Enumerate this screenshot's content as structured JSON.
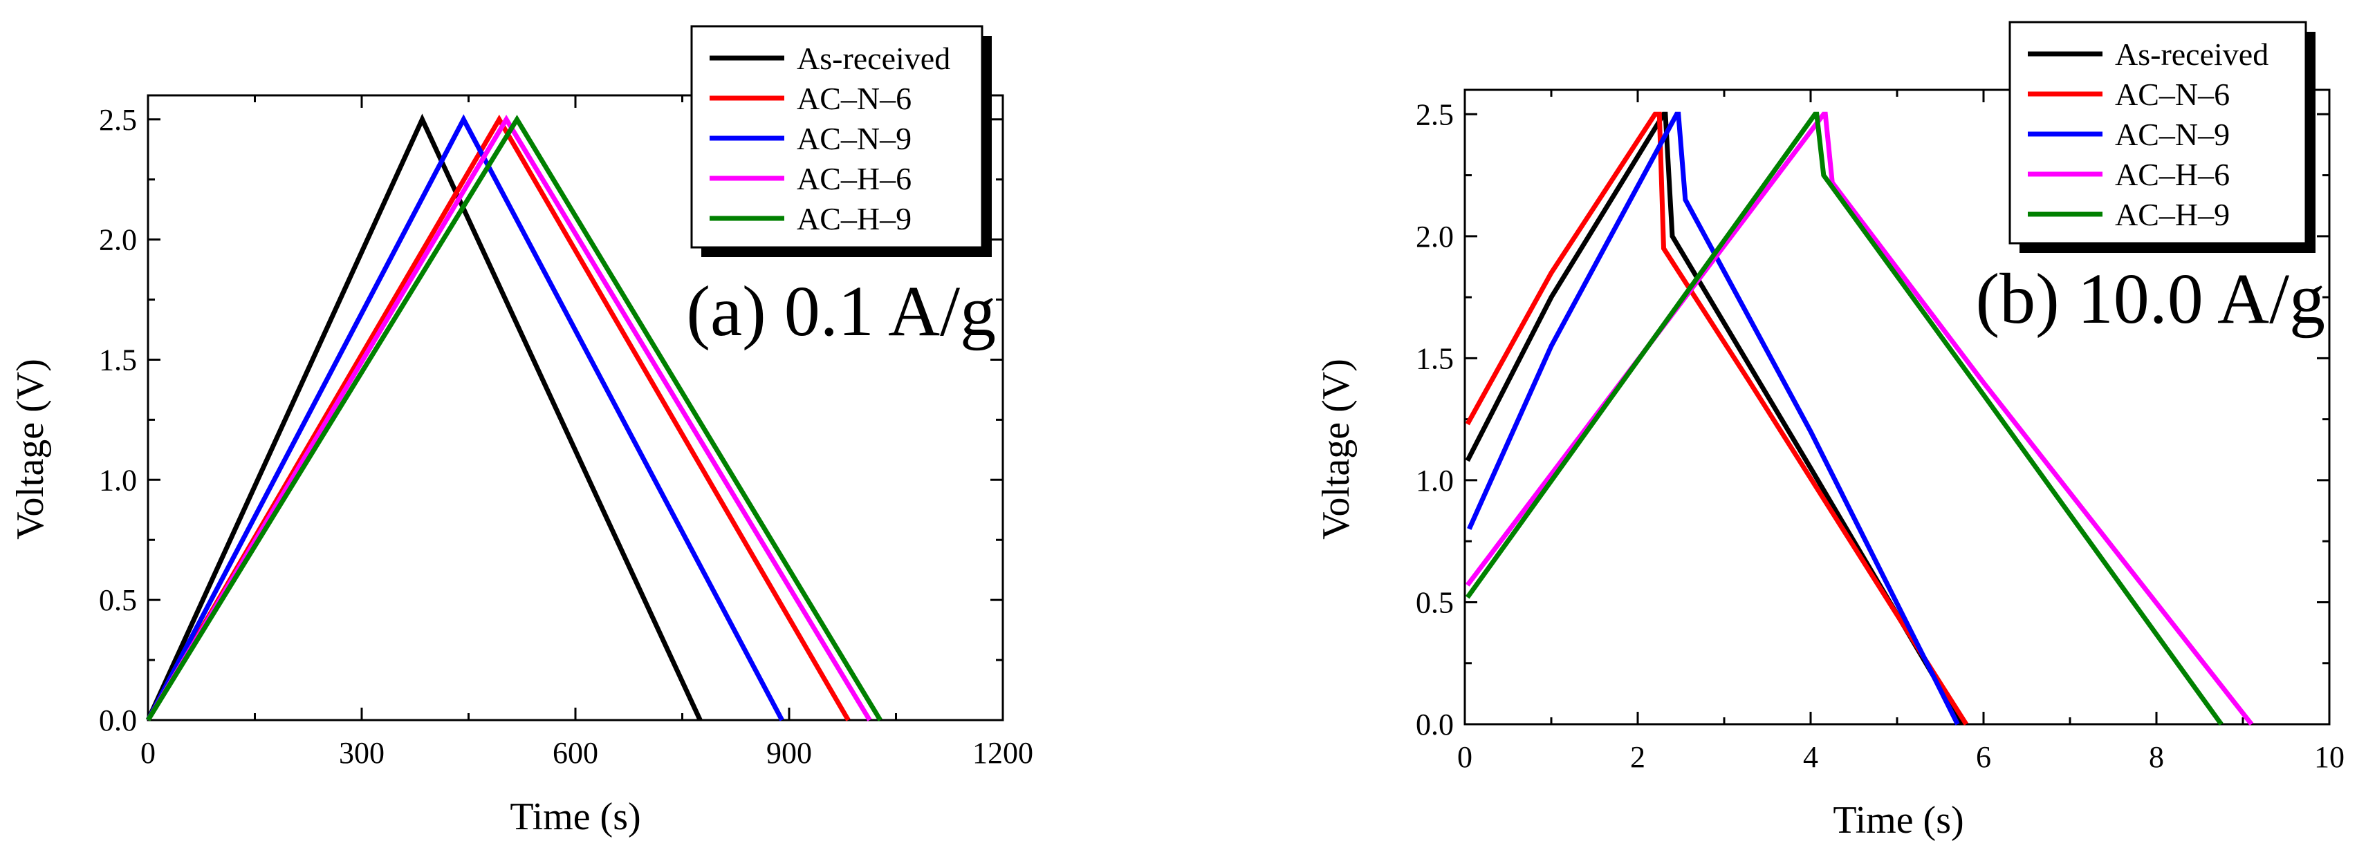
{
  "chart_data": [
    {
      "type": "line",
      "annotation": "(a) 0.1 A/g",
      "xlabel": "Time (s)",
      "ylabel": "Voltage (V)",
      "xlim": [
        0,
        1200
      ],
      "ylim": [
        0,
        2.6
      ],
      "xticks": [
        0,
        300,
        600,
        900,
        1200
      ],
      "xtick_labels": [
        "0",
        "300",
        "600",
        "900",
        "1200"
      ],
      "yticks": [
        0,
        0.5,
        1.0,
        1.5,
        2.0,
        2.5
      ],
      "ytick_labels": [
        "0.0",
        "0.5",
        "1.0",
        "1.5",
        "2.0",
        "2.5"
      ],
      "legend_position": "top-right",
      "series": [
        {
          "name": "As-received",
          "color": "#000000",
          "x": [
            0,
            385,
            775
          ],
          "y": [
            0,
            2.5,
            0
          ]
        },
        {
          "name": "AC–N–6",
          "color": "#ff0000",
          "x": [
            0,
            493,
            983
          ],
          "y": [
            0,
            2.5,
            0
          ]
        },
        {
          "name": "AC–N–9",
          "color": "#0000ff",
          "x": [
            0,
            443,
            890
          ],
          "y": [
            0,
            2.5,
            0
          ]
        },
        {
          "name": "AC–H–6",
          "color": "#ff00ff",
          "x": [
            0,
            503,
            1013
          ],
          "y": [
            0,
            2.5,
            0
          ]
        },
        {
          "name": "AC–H–9",
          "color": "#008000",
          "x": [
            0,
            518,
            1028
          ],
          "y": [
            0,
            2.5,
            0
          ]
        }
      ]
    },
    {
      "type": "line",
      "annotation": "(b) 10.0 A/g",
      "xlabel": "Time (s)",
      "ylabel": "Voltage (V)",
      "xlim": [
        0,
        10
      ],
      "ylim": [
        0,
        2.6
      ],
      "xticks": [
        0,
        2,
        4,
        6,
        8,
        10
      ],
      "xtick_labels": [
        "0",
        "2",
        "4",
        "6",
        "8",
        "10"
      ],
      "yticks": [
        0,
        0.5,
        1.0,
        1.5,
        2.0,
        2.5
      ],
      "ytick_labels": [
        "0.0",
        "0.5",
        "1.0",
        "1.5",
        "2.0",
        "2.5"
      ],
      "legend_position": "top-right",
      "series": [
        {
          "name": "As-received",
          "color": "#000000",
          "x": [
            0.03,
            1.0,
            2.3,
            2.32,
            2.4,
            4.0,
            5.75
          ],
          "y": [
            1.08,
            1.75,
            2.5,
            2.5,
            2.0,
            1.05,
            0
          ]
        },
        {
          "name": "AC–N–6",
          "color": "#ff0000",
          "x": [
            0.03,
            1.0,
            2.2,
            2.25,
            2.3,
            3.3,
            5.8
          ],
          "y": [
            1.23,
            1.85,
            2.5,
            2.5,
            1.95,
            1.4,
            0
          ]
        },
        {
          "name": "AC–N–9",
          "color": "#0000ff",
          "x": [
            0.05,
            1.0,
            2.45,
            2.47,
            2.55,
            4.0,
            5.7
          ],
          "y": [
            0.8,
            1.55,
            2.5,
            2.5,
            2.15,
            1.2,
            0
          ]
        },
        {
          "name": "AC–H–6",
          "color": "#ff00ff",
          "x": [
            0.03,
            4.15,
            4.17,
            4.25,
            6.0,
            9.1
          ],
          "y": [
            0.57,
            2.5,
            2.5,
            2.22,
            1.4,
            0
          ]
        },
        {
          "name": "AC–H–9",
          "color": "#008000",
          "x": [
            0.03,
            4.05,
            4.07,
            4.15,
            6.0,
            8.75
          ],
          "y": [
            0.52,
            2.5,
            2.5,
            2.25,
            1.35,
            0
          ]
        }
      ]
    }
  ]
}
